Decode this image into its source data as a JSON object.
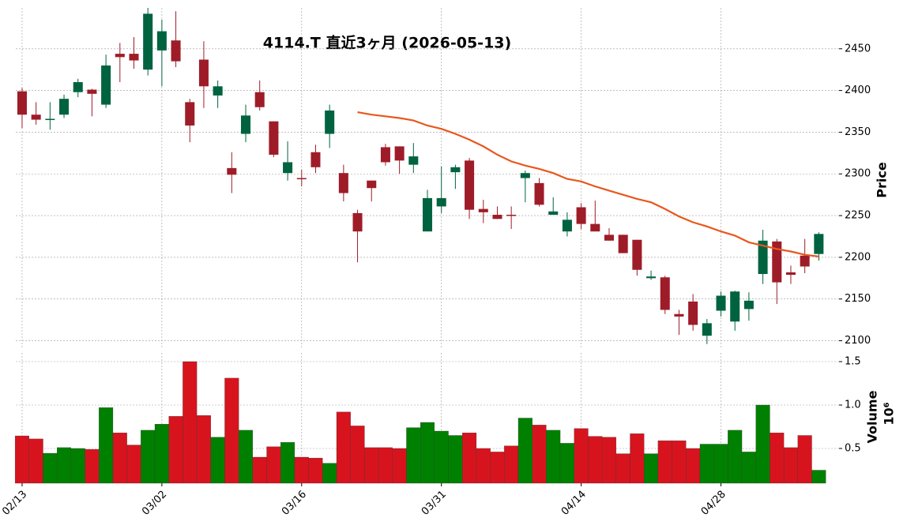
{
  "chart_data": {
    "type": "candlestick",
    "title": "4114.T 直近3ヶ月 (2026-05-13)",
    "categories": [
      "02/13",
      null,
      null,
      null,
      null,
      null,
      null,
      null,
      null,
      null,
      "03/02",
      null,
      null,
      null,
      null,
      null,
      null,
      null,
      null,
      null,
      "03/16",
      null,
      null,
      null,
      null,
      null,
      null,
      null,
      null,
      null,
      "03/31",
      null,
      null,
      null,
      null,
      null,
      null,
      null,
      null,
      null,
      "04/14",
      null,
      null,
      null,
      null,
      null,
      null,
      null,
      null,
      null,
      "04/28",
      null,
      null,
      null,
      null,
      null,
      null,
      null
    ],
    "open": [
      2399,
      2371,
      2365,
      2371,
      2398,
      2401,
      2383,
      2444,
      2444,
      2425,
      2448,
      2460,
      2386,
      2437,
      2394,
      2307,
      2348,
      2398,
      2363,
      2301,
      2295,
      2326,
      2348,
      2301,
      2253,
      2292,
      2332,
      2333,
      2311,
      2231,
      2261,
      2302,
      2316,
      2258,
      2251,
      2251,
      2295,
      2289,
      2251,
      2231,
      2260,
      2240,
      2227,
      2227,
      2221,
      2175,
      2176,
      2132,
      2147,
      2106,
      2136,
      2123,
      2138,
      2180,
      2219,
      2182,
      2202,
      2204
    ],
    "high": [
      2403,
      2386,
      2386,
      2395,
      2414,
      2402,
      2443,
      2457,
      2464,
      2499,
      2485,
      2495,
      2390,
      2459,
      2412,
      2326,
      2383,
      2412,
      2363,
      2339,
      2305,
      2335,
      2383,
      2311,
      2257,
      2292,
      2336,
      2333,
      2337,
      2281,
      2309,
      2311,
      2319,
      2269,
      2261,
      2261,
      2304,
      2295,
      2272,
      2254,
      2265,
      2268,
      2235,
      2227,
      2221,
      2184,
      2178,
      2137,
      2156,
      2126,
      2159,
      2160,
      2158,
      2233,
      2222,
      2190,
      2222,
      2230
    ],
    "low": [
      2355,
      2359,
      2353,
      2367,
      2392,
      2369,
      2379,
      2410,
      2426,
      2418,
      2405,
      2428,
      2338,
      2379,
      2379,
      2277,
      2338,
      2376,
      2320,
      2292,
      2285,
      2301,
      2331,
      2267,
      2194,
      2267,
      2310,
      2300,
      2301,
      2231,
      2253,
      2282,
      2246,
      2241,
      2246,
      2234,
      2266,
      2261,
      2251,
      2225,
      2234,
      2231,
      2220,
      2205,
      2178,
      2173,
      2132,
      2107,
      2112,
      2096,
      2129,
      2112,
      2124,
      2168,
      2144,
      2168,
      2181,
      2196
    ],
    "close": [
      2371,
      2365,
      2366,
      2390,
      2410,
      2396,
      2430,
      2440,
      2436,
      2492,
      2471,
      2435,
      2358,
      2405,
      2405,
      2299,
      2370,
      2380,
      2323,
      2314,
      2294,
      2308,
      2376,
      2277,
      2231,
      2283,
      2314,
      2316,
      2321,
      2271,
      2271,
      2308,
      2257,
      2254,
      2246,
      2250,
      2301,
      2263,
      2255,
      2245,
      2240,
      2231,
      2220,
      2205,
      2185,
      2177,
      2137,
      2129,
      2119,
      2121,
      2154,
      2159,
      2148,
      2220,
      2170,
      2179,
      2189,
      2228
    ],
    "up_color": "#006340",
    "down_color": "#9e1c28",
    "ylim": [
      2092,
      2499
    ],
    "yticks": [
      2100,
      2150,
      2200,
      2250,
      2300,
      2350,
      2400,
      2450
    ],
    "ylabel": "Price",
    "grid": true,
    "sma": {
      "color": "#e8571c",
      "values": [
        null,
        null,
        null,
        null,
        null,
        null,
        null,
        null,
        null,
        null,
        null,
        null,
        null,
        null,
        null,
        null,
        null,
        null,
        null,
        null,
        null,
        null,
        null,
        null,
        2374,
        2371,
        2369,
        2367,
        2364,
        2358,
        2354,
        2348,
        2341,
        2333,
        2323,
        2315,
        2310,
        2306,
        2301,
        2294,
        2291,
        2285,
        2280,
        2275,
        2270,
        2266,
        2258,
        2249,
        2242,
        2237,
        2231,
        2226,
        2218,
        2214,
        2210,
        2207,
        2203,
        2201
      ]
    },
    "volume": {
      "values": [
        0.645,
        0.61,
        0.445,
        0.51,
        0.5,
        0.49,
        0.97,
        0.68,
        0.54,
        0.71,
        0.78,
        0.87,
        1.5,
        0.88,
        0.63,
        1.31,
        0.71,
        0.4,
        0.52,
        0.57,
        0.4,
        0.39,
        0.33,
        0.92,
        0.76,
        0.51,
        0.51,
        0.5,
        0.74,
        0.8,
        0.7,
        0.65,
        0.68,
        0.5,
        0.46,
        0.53,
        0.85,
        0.77,
        0.71,
        0.56,
        0.73,
        0.64,
        0.63,
        0.44,
        0.67,
        0.44,
        0.59,
        0.59,
        0.5,
        0.55,
        0.55,
        0.71,
        0.46,
        1.0,
        0.68,
        0.51,
        0.65,
        0.25
      ],
      "up_color": "#008000",
      "down_color": "#d7141e",
      "ylim": [
        0.1,
        1.6
      ],
      "yticks": [
        0.5,
        {
          "value": 1,
          "label": "1.0"
        },
        1.5
      ],
      "ylabel": "Volume",
      "offset_label": "10⁶"
    }
  }
}
